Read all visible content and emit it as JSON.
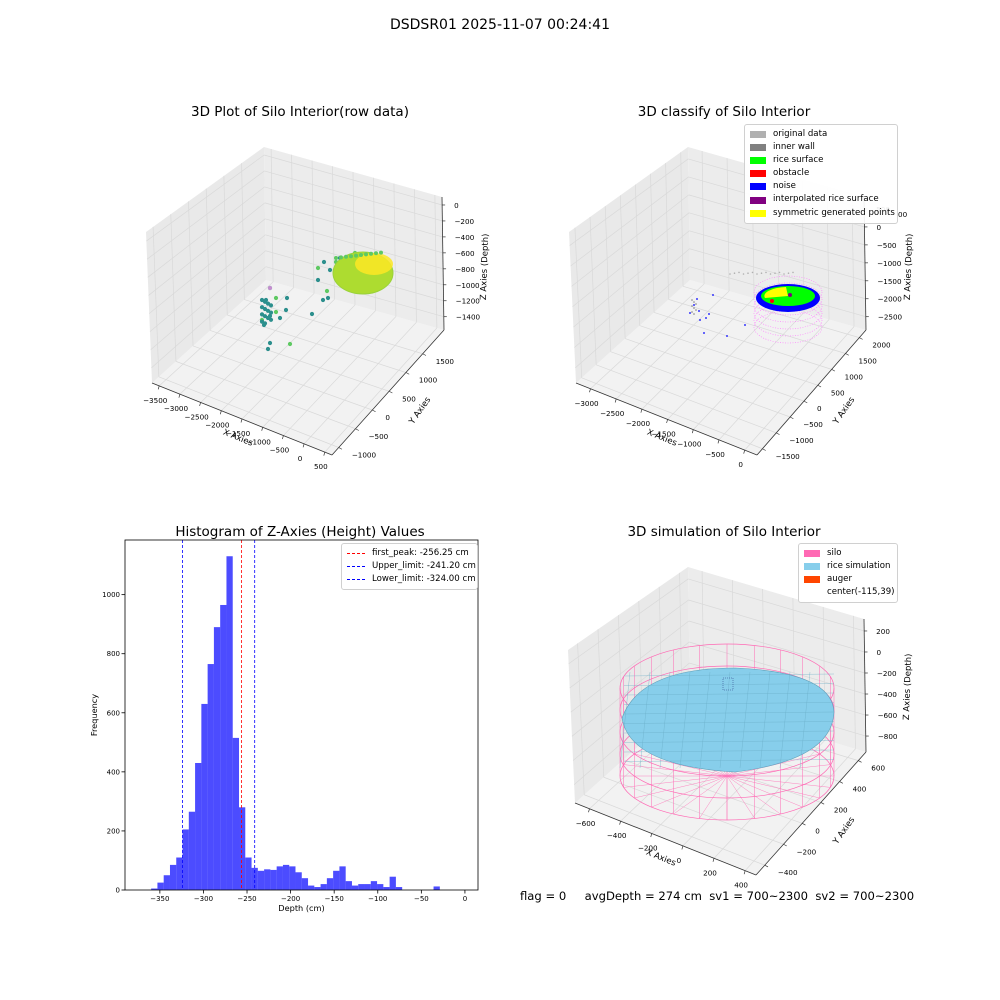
{
  "suptitle": "DSDSR01 2025-11-07 00:24:41",
  "status": {
    "flag": "flag = 0",
    "avg": "avgDepth = 274 cm",
    "sv1": "sv1 = 700~2300",
    "sv2": "sv2 = 700~2300"
  },
  "chart_data": [
    {
      "type": "scatter",
      "title": "3D Plot of Silo Interior(row data)",
      "xlabel": "X Axies",
      "ylabel": "Y Axies",
      "zlabel": "Z Axies (Depth)",
      "x_ticks": [
        "−3500",
        "−3000",
        "−2500",
        "−2000",
        "−1500",
        "−1000",
        "−500",
        "0",
        "500"
      ],
      "y_ticks": [
        "−1000",
        "−500",
        "0",
        "500",
        "1000",
        "1500"
      ],
      "z_ticks": [
        "0",
        "−200",
        "−400",
        "−600",
        "−800",
        "−1000",
        "−1200",
        "−1400"
      ],
      "colors": [
        "#2c8f8d",
        "#5ec962",
        "#addc30",
        "#fde725"
      ]
    },
    {
      "type": "scatter",
      "title": "3D classify of Silo Interior",
      "xlabel": "X Axies",
      "ylabel": "Y Axies",
      "zlabel": "Z Axies (Depth)",
      "x_ticks": [
        "−3000",
        "−2500",
        "−2000",
        "−1500",
        "−1000",
        "−500",
        "0"
      ],
      "y_ticks": [
        "−1500",
        "−1000",
        "−500",
        "0",
        "500",
        "1000",
        "1500",
        "2000"
      ],
      "z_ticks": [
        "500",
        "0",
        "−500",
        "−1000",
        "−1500",
        "−2000",
        "−2500"
      ],
      "z_top_partial": "00",
      "legend": [
        {
          "label": "original data",
          "color": "#b0b0b0"
        },
        {
          "label": "inner wall",
          "color": "#808080"
        },
        {
          "label": "rice surface",
          "color": "#00ff00"
        },
        {
          "label": "obstacle",
          "color": "#ff0000"
        },
        {
          "label": "noise",
          "color": "#0000ff"
        },
        {
          "label": "interpolated rice surface",
          "color": "#800080"
        },
        {
          "label": "symmetric generated points",
          "color": "#ffff00"
        }
      ]
    },
    {
      "type": "bar",
      "title": "Histogram of Z-Axies (Height) Values",
      "xlabel": "Depth (cm)",
      "ylabel": "Frequency",
      "xlim": [
        -390,
        15
      ],
      "ylim": [
        0,
        1185
      ],
      "bin_width": 7.2,
      "bin_start": -360,
      "values": [
        5,
        25,
        50,
        85,
        110,
        205,
        265,
        430,
        630,
        765,
        890,
        965,
        1130,
        515,
        280,
        110,
        75,
        65,
        70,
        68,
        80,
        85,
        80,
        60,
        40,
        15,
        10,
        20,
        40,
        65,
        80,
        30,
        15,
        20,
        20,
        30,
        20,
        10,
        45,
        10,
        0,
        0,
        0,
        0,
        0,
        12
      ],
      "x_ticks": [
        -350,
        -300,
        -250,
        -200,
        -150,
        -100,
        -50,
        0
      ],
      "x_tick_labels": [
        "−350",
        "−300",
        "−250",
        "−200",
        "−150",
        "−100",
        "−50",
        "0"
      ],
      "y_ticks": [
        0,
        200,
        400,
        600,
        800,
        1000
      ],
      "y_tick_labels": [
        "0",
        "200",
        "400",
        "600",
        "800",
        "1000"
      ],
      "bar_color": "#0000ff",
      "vlines": [
        {
          "x": -256.25,
          "label": "first_peak: -256.25 cm",
          "color": "#ff0000"
        },
        {
          "x": -241.2,
          "label": "Upper_limit: -241.20 cm",
          "color": "#0000ff"
        },
        {
          "x": -324.0,
          "label": "Lower_limit: -324.00 cm",
          "color": "#0000ff"
        }
      ],
      "legend_position": "top-right"
    },
    {
      "type": "scatter",
      "title": "3D simulation of Silo Interior",
      "xlabel": "X Axies",
      "ylabel": "Y Axies",
      "zlabel": "Z Axies (Depth)",
      "x_ticks": [
        "−600",
        "−400",
        "−200",
        "0",
        "200",
        "400"
      ],
      "y_ticks": [
        "−400",
        "−200",
        "0",
        "200",
        "400",
        "600"
      ],
      "z_ticks": [
        "200",
        "0",
        "−200",
        "−400",
        "−600",
        "−800"
      ],
      "legend": [
        {
          "label": "silo",
          "color": "#ff69b4"
        },
        {
          "label": "rice simulation",
          "color": "#87ceeb"
        },
        {
          "label": "auger",
          "color": "#ff4500"
        },
        {
          "label": "center(-115,39)",
          "color": ""
        }
      ]
    }
  ]
}
